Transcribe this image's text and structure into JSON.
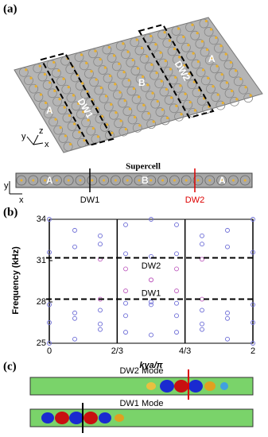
{
  "panel_a": {
    "label": "(a)",
    "regions": [
      "A",
      "DW1",
      "B",
      "DW2",
      "A"
    ],
    "axes": [
      "y",
      "x",
      "z"
    ],
    "supercell": {
      "title": "Supercell",
      "regions": [
        "A",
        "B",
        "A"
      ],
      "axes": [
        "y",
        "x"
      ],
      "walls": [
        "DW1",
        "DW2"
      ]
    }
  },
  "chart_data": {
    "type": "scatter",
    "label": "(b)",
    "ylabel": "Frequency (kHz)",
    "xlabel": "kya/π",
    "x": [
      0,
      0.25,
      0.5,
      0.75,
      1,
      1.25,
      1.5,
      1.75,
      2
    ],
    "series": [
      {
        "color": "#6b6bd6",
        "values": [
          25.0,
          25.3,
          26.0,
          27.0,
          27.8,
          27.0,
          26.0,
          25.3,
          25.0
        ]
      },
      {
        "color": "#6b6bd6",
        "values": [
          27.8,
          27.2,
          26.4,
          25.8,
          25.6,
          25.8,
          26.4,
          27.2,
          27.8
        ]
      },
      {
        "color": "#6b6bd6",
        "values": [
          26.5,
          26.8,
          27.4,
          27.9,
          28.0,
          27.9,
          27.4,
          26.8,
          26.5
        ]
      },
      {
        "color": "#6b6bd6",
        "values": [
          34.0,
          33.2,
          32.2,
          31.5,
          31.3,
          31.5,
          32.2,
          33.2,
          34.0
        ]
      },
      {
        "color": "#6b6bd6",
        "values": [
          31.6,
          32.0,
          32.8,
          33.6,
          34.0,
          33.6,
          32.8,
          32.0,
          31.6
        ]
      },
      {
        "color": "#c060c0",
        "values": [
          null,
          null,
          28.2,
          28.8,
          29.6,
          30.4,
          31.1,
          null,
          null
        ]
      },
      {
        "color": "#c060c0",
        "values": [
          null,
          null,
          31.1,
          30.4,
          29.6,
          28.8,
          28.2,
          null,
          null
        ]
      }
    ],
    "bandgap": [
      28.2,
      31.2
    ],
    "annotations": [
      "DW2",
      "DW1"
    ],
    "xlim": [
      0,
      2
    ],
    "ylim": [
      25,
      34
    ],
    "xticks": [
      0,
      {
        "value": 0.6667,
        "label": "2/3"
      },
      {
        "value": 1.3333,
        "label": "4/3"
      },
      2
    ],
    "yticks": [
      25,
      28,
      31,
      34
    ]
  },
  "panel_c": {
    "label": "(c)",
    "modes": [
      "DW2 Mode",
      "DW1 Mode"
    ]
  }
}
